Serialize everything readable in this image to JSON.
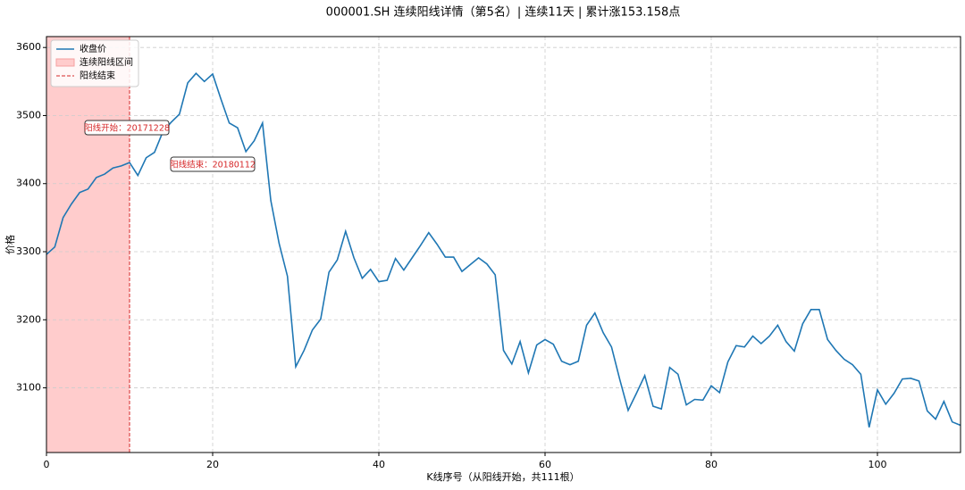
{
  "chart_data": {
    "type": "line",
    "title": "000001.SH 连续阳线详情（第5名）| 连续11天 | 累计涨153.158点",
    "x_label": "K线序号（从阳线开始，共111根）",
    "y_label": "价格",
    "x": [
      0,
      1,
      2,
      3,
      4,
      5,
      6,
      7,
      8,
      9,
      10,
      11,
      12,
      13,
      14,
      15,
      16,
      17,
      18,
      19,
      20,
      21,
      22,
      23,
      24,
      25,
      26,
      27,
      28,
      29,
      30,
      31,
      32,
      33,
      34,
      35,
      36,
      37,
      38,
      39,
      40,
      41,
      42,
      43,
      44,
      45,
      46,
      47,
      48,
      49,
      50,
      51,
      52,
      53,
      54,
      55,
      56,
      57,
      58,
      59,
      60,
      61,
      62,
      63,
      64,
      65,
      66,
      67,
      68,
      69,
      70,
      71,
      72,
      73,
      74,
      75,
      76,
      77,
      78,
      79,
      80,
      81,
      82,
      83,
      84,
      85,
      86,
      87,
      88,
      89,
      90,
      91,
      92,
      93,
      94,
      95,
      96,
      97,
      98,
      99,
      100,
      101,
      102,
      103,
      104,
      105,
      106,
      107,
      108,
      109,
      110
    ],
    "series": [
      {
        "name": "收盘价",
        "color": "#1f77b4",
        "values": [
          3296,
          3307,
          3350,
          3370,
          3387,
          3392,
          3409,
          3414,
          3423,
          3426,
          3431,
          3412,
          3438,
          3446,
          3476,
          3490,
          3502,
          3548,
          3562,
          3550,
          3561,
          3524,
          3489,
          3482,
          3447,
          3463,
          3489,
          3375,
          3312,
          3264,
          3131,
          3155,
          3185,
          3201,
          3270,
          3288,
          3330,
          3291,
          3261,
          3274,
          3256,
          3258,
          3290,
          3273,
          3291,
          3309,
          3328,
          3311,
          3292,
          3292,
          3271,
          3281,
          3291,
          3282,
          3266,
          3155,
          3135,
          3168,
          3122,
          3163,
          3171,
          3164,
          3139,
          3134,
          3139,
          3192,
          3210,
          3181,
          3160,
          3112,
          3067,
          3092,
          3118,
          3073,
          3069,
          3130,
          3120,
          3075,
          3083,
          3082,
          3103,
          3093,
          3138,
          3162,
          3160,
          3176,
          3165,
          3176,
          3192,
          3168,
          3154,
          3194,
          3215,
          3215,
          3171,
          3155,
          3142,
          3134,
          3120,
          3042,
          3097,
          3076,
          3092,
          3113,
          3114,
          3110,
          3066,
          3054,
          3080,
          3050,
          3045
        ]
      }
    ],
    "span": {
      "name": "连续阳线区间",
      "color": "#ffcccc",
      "range": [
        0,
        10
      ]
    },
    "vline": {
      "name": "阳线结束",
      "color": "#d62728",
      "x": 10
    },
    "annotations": [
      {
        "text": "阳线开始：20171228"
      },
      {
        "text": "阳线结束：20180112"
      }
    ],
    "xlim": [
      0,
      110
    ],
    "xticks": [
      0,
      20,
      40,
      60,
      80,
      100
    ],
    "ylim": [
      3005,
      3616
    ],
    "yticks": [
      3100,
      3200,
      3300,
      3400,
      3500,
      3600
    ],
    "grid": true,
    "legend": "upper left"
  }
}
